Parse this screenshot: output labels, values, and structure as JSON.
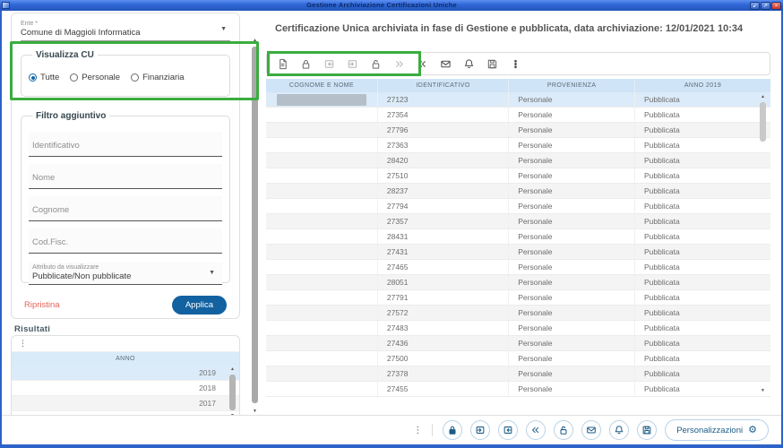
{
  "window": {
    "title": "Gestione Archiviazione Certificazioni Uniche",
    "controls": {
      "minimize": "↙",
      "maximize": "↗",
      "close": "×"
    }
  },
  "sidebar": {
    "ente": {
      "label": "Ente *",
      "value": "Comune di Maggioli Informatica"
    },
    "visualizza_cu": {
      "legend": "Visualizza CU",
      "options": [
        {
          "label": "Tutte",
          "selected": true
        },
        {
          "label": "Personale",
          "selected": false
        },
        {
          "label": "Finanziaria",
          "selected": false
        }
      ]
    },
    "filtro": {
      "legend": "Filtro aggiuntivo",
      "fields": [
        {
          "placeholder": "Identificativo"
        },
        {
          "placeholder": "Nome"
        },
        {
          "placeholder": "Cognome"
        },
        {
          "placeholder": "Cod.Fisc."
        }
      ],
      "attributo": {
        "label": "Attributo da visualizzare",
        "value": "Pubblicate/Non pubblicate"
      }
    },
    "actions": {
      "ripristina": "Ripristina",
      "applica": "Applica"
    },
    "risultati": {
      "title": "Risultati",
      "column": "ANNO",
      "rows": [
        "2019",
        "2018",
        "2017"
      ],
      "selected_row": "2019"
    }
  },
  "main": {
    "heading": "Certificazione Unica archiviata in fase di Gestione e pubblicata, data archiviazione: 12/01/2021 10:34",
    "toolbar_icons": [
      "file-icon",
      "lock-icon",
      "unpublish-icon",
      "publish-icon",
      "unlock-icon",
      "forward-icon",
      "rewind-icon",
      "mail-icon",
      "bell-icon",
      "save-icon",
      "more-vertical-icon"
    ],
    "table": {
      "columns": [
        "COGNOME E NOME",
        "IDENTIFICATIVO",
        "PROVENIENZA",
        "ANNO 2019"
      ],
      "rows": [
        {
          "identificativo": "27123",
          "provenienza": "Personale",
          "anno_2019": "Pubblicata"
        },
        {
          "identificativo": "27354",
          "provenienza": "Personale",
          "anno_2019": "Pubblicata"
        },
        {
          "identificativo": "27796",
          "provenienza": "Personale",
          "anno_2019": "Pubblicata"
        },
        {
          "identificativo": "27363",
          "provenienza": "Personale",
          "anno_2019": "Pubblicata"
        },
        {
          "identificativo": "28420",
          "provenienza": "Personale",
          "anno_2019": "Pubblicata"
        },
        {
          "identificativo": "27510",
          "provenienza": "Personale",
          "anno_2019": "Pubblicata"
        },
        {
          "identificativo": "28237",
          "provenienza": "Personale",
          "anno_2019": "Pubblicata"
        },
        {
          "identificativo": "27794",
          "provenienza": "Personale",
          "anno_2019": "Pubblicata"
        },
        {
          "identificativo": "27357",
          "provenienza": "Personale",
          "anno_2019": "Pubblicata"
        },
        {
          "identificativo": "28431",
          "provenienza": "Personale",
          "anno_2019": "Pubblicata"
        },
        {
          "identificativo": "27431",
          "provenienza": "Personale",
          "anno_2019": "Pubblicata"
        },
        {
          "identificativo": "27465",
          "provenienza": "Personale",
          "anno_2019": "Pubblicata"
        },
        {
          "identificativo": "28051",
          "provenienza": "Personale",
          "anno_2019": "Pubblicata"
        },
        {
          "identificativo": "27791",
          "provenienza": "Personale",
          "anno_2019": "Pubblicata"
        },
        {
          "identificativo": "27572",
          "provenienza": "Personale",
          "anno_2019": "Pubblicata"
        },
        {
          "identificativo": "27483",
          "provenienza": "Personale",
          "anno_2019": "Pubblicata"
        },
        {
          "identificativo": "27436",
          "provenienza": "Personale",
          "anno_2019": "Pubblicata"
        },
        {
          "identificativo": "27500",
          "provenienza": "Personale",
          "anno_2019": "Pubblicata"
        },
        {
          "identificativo": "27378",
          "provenienza": "Personale",
          "anno_2019": "Pubblicata"
        },
        {
          "identificativo": "27455",
          "provenienza": "Personale",
          "anno_2019": "Pubblicata"
        }
      ]
    }
  },
  "bottom_bar": {
    "icons": [
      "more-vertical-icon",
      "lock-icon",
      "publish-icon",
      "unpublish-icon",
      "rewind-icon",
      "unlock-icon",
      "mail-icon",
      "bell-icon",
      "save-icon"
    ],
    "personalizzazioni_label": "Personalizzazioni"
  },
  "colors": {
    "annotation_green": "#3aad3e",
    "accent_blue": "#1261a0",
    "icon_blue": "#1b5c86",
    "selected_row": "#dcebf9",
    "table_header": "#cfe4f6",
    "titlebar_blue": "#2f66d6",
    "ripristina_red": "#e5635a"
  }
}
